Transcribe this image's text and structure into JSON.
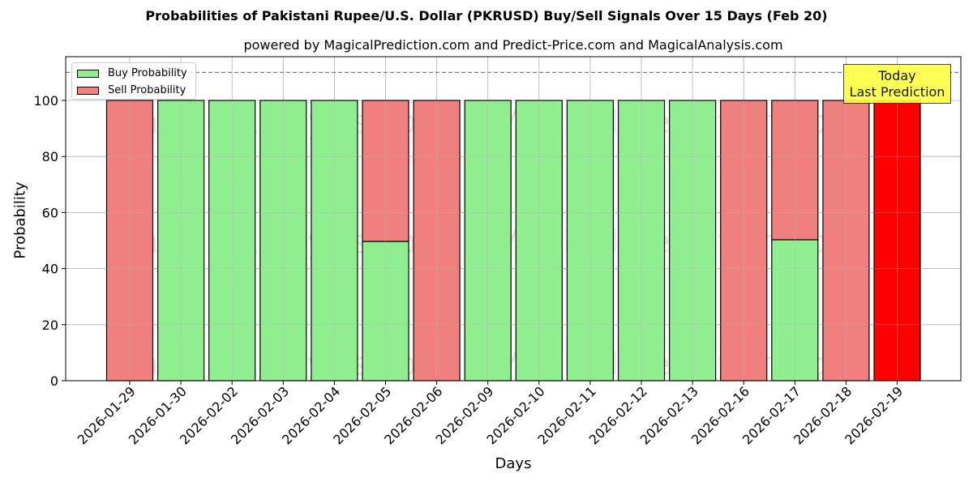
{
  "header": {
    "title": "Probabilities of Pakistani Rupee/U.S. Dollar (PKRUSD) Buy/Sell Signals Over 15 Days (Feb 20)",
    "subtitle": "powered by MagicalPrediction.com and Predict-Price.com and MagicalAnalysis.com"
  },
  "legend": {
    "buy_label": "Buy Probability",
    "sell_label": "Sell Probability"
  },
  "annotation": {
    "line1": "Today",
    "line2": "Last Prediction"
  },
  "watermarks": [
    "MagicalAnalysis.com",
    "MagicalPrediction.com"
  ],
  "colors": {
    "buy": "#90ee90",
    "sell": "#f08080",
    "today_sell": "#ff0000",
    "annotation_bg": "#ffff44",
    "grid": "#b0b0b0"
  },
  "chart_data": {
    "type": "bar",
    "stacked": true,
    "title": "Probabilities of Pakistani Rupee/U.S. Dollar (PKRUSD) Buy/Sell Signals Over 15 Days (Feb 20)",
    "subtitle": "powered by MagicalPrediction.com and Predict-Price.com and MagicalAnalysis.com",
    "xlabel": "Days",
    "ylabel": "Probability",
    "ylim": [
      0,
      115
    ],
    "yticks": [
      0,
      20,
      40,
      60,
      80,
      100
    ],
    "grid": true,
    "legend_position": "upper left",
    "reference_line": {
      "y": 110,
      "style": "dashed",
      "color": "#808080"
    },
    "categories": [
      "2026-01-29",
      "2026-01-30",
      "2026-02-02",
      "2026-02-03",
      "2026-02-04",
      "2026-02-05",
      "2026-02-06",
      "2026-02-09",
      "2026-02-10",
      "2026-02-11",
      "2026-02-12",
      "2026-02-13",
      "2026-02-16",
      "2026-02-17",
      "2026-02-18",
      "2026-02-19"
    ],
    "series": [
      {
        "name": "Buy Probability",
        "values": [
          0,
          100,
          100,
          100,
          100,
          49.7,
          0,
          100,
          100,
          100,
          100,
          100,
          0,
          50.3,
          0,
          0
        ]
      },
      {
        "name": "Sell Probability",
        "values": [
          100,
          0,
          0,
          0,
          0,
          50.3,
          100,
          0,
          0,
          0,
          0,
          0,
          100,
          49.7,
          100,
          100
        ]
      }
    ],
    "annotations": [
      {
        "text": "Today\nLast Prediction",
        "x": "2026-02-19"
      }
    ]
  }
}
